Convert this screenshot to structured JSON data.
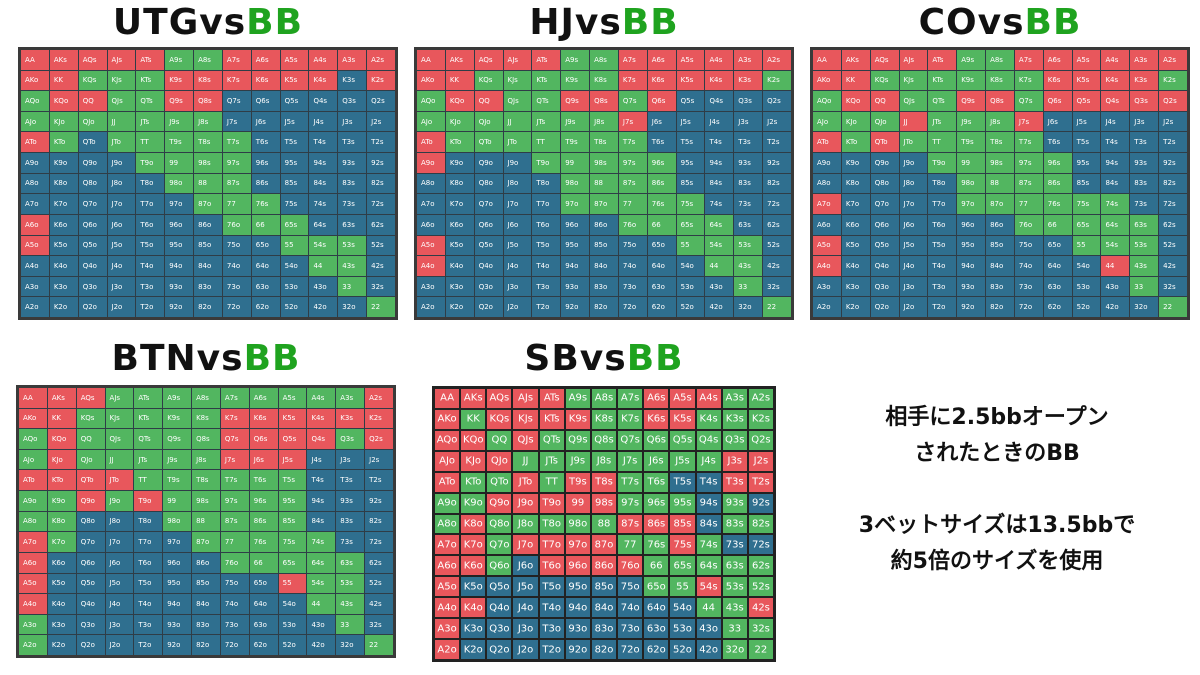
{
  "colors": {
    "raise": "#e8575c",
    "call": "#52b660",
    "fold": "#2f6f8f"
  },
  "hands": [
    [
      "AA",
      "AKs",
      "AQs",
      "AJs",
      "ATs",
      "A9s",
      "A8s",
      "A7s",
      "A6s",
      "A5s",
      "A4s",
      "A3s",
      "A2s"
    ],
    [
      "AKo",
      "KK",
      "KQs",
      "KJs",
      "KTs",
      "K9s",
      "K8s",
      "K7s",
      "K6s",
      "K5s",
      "K4s",
      "K3s",
      "K2s"
    ],
    [
      "AQo",
      "KQo",
      "QQ",
      "QJs",
      "QTs",
      "Q9s",
      "Q8s",
      "Q7s",
      "Q6s",
      "Q5s",
      "Q4s",
      "Q3s",
      "Q2s"
    ],
    [
      "AJo",
      "KJo",
      "QJo",
      "JJ",
      "JTs",
      "J9s",
      "J8s",
      "J7s",
      "J6s",
      "J5s",
      "J4s",
      "J3s",
      "J2s"
    ],
    [
      "ATo",
      "KTo",
      "QTo",
      "JTo",
      "TT",
      "T9s",
      "T8s",
      "T7s",
      "T6s",
      "T5s",
      "T4s",
      "T3s",
      "T2s"
    ],
    [
      "A9o",
      "K9o",
      "Q9o",
      "J9o",
      "T9o",
      "99",
      "98s",
      "97s",
      "96s",
      "95s",
      "94s",
      "93s",
      "92s"
    ],
    [
      "A8o",
      "K8o",
      "Q8o",
      "J8o",
      "T8o",
      "98o",
      "88",
      "87s",
      "86s",
      "85s",
      "84s",
      "83s",
      "82s"
    ],
    [
      "A7o",
      "K7o",
      "Q7o",
      "J7o",
      "T7o",
      "97o",
      "87o",
      "77",
      "76s",
      "75s",
      "74s",
      "73s",
      "72s"
    ],
    [
      "A6o",
      "K6o",
      "Q6o",
      "J6o",
      "T6o",
      "96o",
      "86o",
      "76o",
      "66",
      "65s",
      "64s",
      "63s",
      "62s"
    ],
    [
      "A5o",
      "K5o",
      "Q5o",
      "J5o",
      "T5o",
      "95o",
      "85o",
      "75o",
      "65o",
      "55",
      "54s",
      "53s",
      "52s"
    ],
    [
      "A4o",
      "K4o",
      "Q4o",
      "J4o",
      "T4o",
      "94o",
      "84o",
      "74o",
      "64o",
      "54o",
      "44",
      "43s",
      "42s"
    ],
    [
      "A3o",
      "K3o",
      "Q3o",
      "J3o",
      "T3o",
      "93o",
      "83o",
      "73o",
      "63o",
      "53o",
      "43o",
      "33",
      "32s"
    ],
    [
      "A2o",
      "K2o",
      "Q2o",
      "J2o",
      "T2o",
      "92o",
      "82o",
      "72o",
      "62o",
      "52o",
      "42o",
      "32o",
      "22"
    ]
  ],
  "charts": [
    {
      "id": "utg",
      "title_pos": "UTG",
      "title_vs": "vs",
      "title_opp": "BB",
      "rows": [
        "RRRRRCCRRRRRR",
        "RRCCCRRRRRRFR",
        "CRRCCRRFFFFFF",
        "CCCCCCCFFFFFF",
        "RCFCCCCCFFFFF",
        "FFFFCCCCFFFFF",
        "FFFFFCCCFFFFF",
        "FFFFFFCCCFFFF",
        "RFFFFFFCCCFFF",
        "RFFFFFFFFCCCF",
        "FFFFFFFFFFCCF",
        "FFFFFFFFFFFCF",
        "FFFFFFFFFFFFC"
      ]
    },
    {
      "id": "hj",
      "title_pos": "HJ",
      "title_vs": "vs",
      "title_opp": "BB",
      "rows": [
        "RRRRRCCRRRRRR",
        "RRCCCCCRRRRRC",
        "CRRCCRRCRFFFF",
        "CCCCCCCRFFFFF",
        "RCCCCCCCFFFFF",
        "RFFFCCCCCFFFF",
        "FFFFFCCCCFFFF",
        "FFFFFCCCCCFFF",
        "FFFFFFFCCCCFF",
        "RFFFFFFFFCCCF",
        "RFFFFFFFFFCCF",
        "FFFFFFFFFFFCF",
        "FFFFFFFFFFFFC"
      ]
    },
    {
      "id": "co",
      "title_pos": "CO",
      "title_vs": "vs",
      "title_opp": "BB",
      "rows": [
        "RRRRRCCRRRRRR",
        "RRCCCCCCRRRRC",
        "CRRCCRRCRRRRR",
        "CCCRCCCRFFFFF",
        "RCRCCCCCFFFFF",
        "FFFFCCCCCFFFF",
        "FFFFFCCCCFFFF",
        "RFFFFCCCCCCFF",
        "FFFFFFFCCCCCF",
        "RFFFFFFFFCCCF",
        "RFFFFFFFFFRCF",
        "FFFFFFFFFFFCF",
        "FFFFFFFFFFFFC"
      ]
    },
    {
      "id": "btn",
      "title_pos": "BTN",
      "title_vs": "vs",
      "title_opp": "BB",
      "rows": [
        "RRRCCCCCCCCCR",
        "RRCCCCCRRRRRR",
        "CRCCCCCRRRRCR",
        "CRCCCCCRRRFFF",
        "RRRRCCCCCCFFF",
        "CCRCRCCCCCFFF",
        "CCFFFCCCCCFFF",
        "RCFFFFCCCCCFF",
        "RFFFFFFCCCCCF",
        "RFFFFFFFFRCCF",
        "RFFFFFFFFFCCF",
        "CFFFFFFFFFFCF",
        "CFFFFFFFFFFFC"
      ]
    },
    {
      "id": "sb",
      "title_pos": "SB",
      "title_vs": "vs",
      "title_opp": "BB",
      "rows": [
        "RRRRRCCCRRRCC",
        "RCRRRRCCRRCCC",
        "RRCRCCCCCCCCC",
        "RRRCCCCCCCCRR",
        "RCCRCRRCCFFRR",
        "CCRRRRRCCCFCF",
        "CRCCCCCRRRFCC",
        "RRCRRRRCCRCFF",
        "RRCFRRRRCCCCC",
        "RFFFFFFFCCRCC",
        "RRFFFFFFFFCCR",
        "RFFFFFFFFFFCC",
        "RFFFFFFFFFFCC"
      ]
    }
  ],
  "note": {
    "line1": "相手に2.5bbオープン",
    "line2": "されたときのBB",
    "line3": "3ベットサイズは13.5bbで",
    "line4": "約5倍のサイズを使用"
  }
}
